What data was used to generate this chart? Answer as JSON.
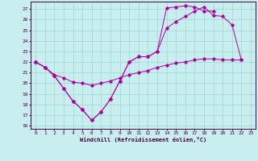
{
  "background_color": "#c8eef0",
  "grid_color": "#a0d8d0",
  "line_color": "#aa00aa",
  "spine_color": "#440044",
  "xlabel": "Windchill (Refroidissement éolien,°C)",
  "xlim": [
    -0.5,
    23.5
  ],
  "ylim": [
    15.7,
    27.7
  ],
  "yticks": [
    16,
    17,
    18,
    19,
    20,
    21,
    22,
    23,
    24,
    25,
    26,
    27
  ],
  "xticks": [
    0,
    1,
    2,
    3,
    4,
    5,
    6,
    7,
    8,
    9,
    10,
    11,
    12,
    13,
    14,
    15,
    16,
    17,
    18,
    19,
    20,
    21,
    22,
    23
  ],
  "line1_x": [
    0,
    1,
    2,
    3,
    4,
    5,
    6,
    7,
    8,
    9,
    10,
    11,
    12,
    13,
    14,
    15,
    16,
    17,
    18,
    19
  ],
  "line1_y": [
    22.0,
    21.5,
    20.7,
    19.5,
    18.3,
    17.5,
    16.5,
    17.3,
    18.5,
    20.2,
    22.0,
    22.5,
    22.5,
    23.0,
    27.1,
    27.2,
    27.3,
    27.2,
    26.8,
    26.8
  ],
  "line2_x": [
    0,
    1,
    2,
    3,
    4,
    5,
    6,
    7,
    8,
    9,
    10,
    11,
    12,
    13,
    14,
    15,
    16,
    17,
    18,
    19,
    20,
    21,
    22
  ],
  "line2_y": [
    22.0,
    21.5,
    20.7,
    19.5,
    18.3,
    17.5,
    16.5,
    17.3,
    18.5,
    20.2,
    22.0,
    22.5,
    22.5,
    23.0,
    25.2,
    25.8,
    26.3,
    26.8,
    27.2,
    26.4,
    26.3,
    25.5,
    22.2
  ],
  "line3_x": [
    0,
    1,
    2,
    3,
    4,
    5,
    6,
    7,
    8,
    9,
    10,
    11,
    12,
    13,
    14,
    15,
    16,
    17,
    18,
    19,
    20,
    21,
    22
  ],
  "line3_y": [
    22.0,
    21.5,
    20.8,
    20.5,
    20.1,
    20.0,
    19.8,
    20.0,
    20.2,
    20.5,
    20.8,
    21.0,
    21.2,
    21.5,
    21.7,
    21.9,
    22.0,
    22.2,
    22.3,
    22.3,
    22.2,
    22.2,
    22.2
  ]
}
